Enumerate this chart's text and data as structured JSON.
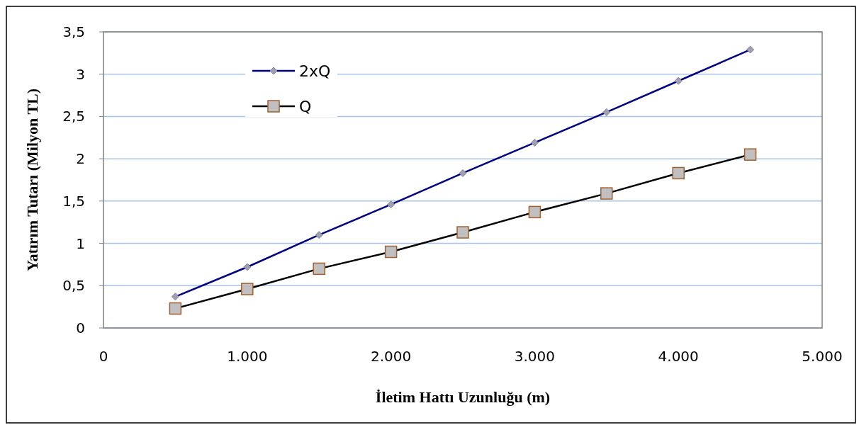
{
  "chart_data": {
    "type": "line",
    "xlabel": "İletim Hattı Uzunluğu (m)",
    "ylabel": "Yatırım Tutarı (Milyon TL)",
    "x": [
      500,
      1000,
      1500,
      2000,
      2500,
      3000,
      3500,
      4000,
      4500
    ],
    "series": [
      {
        "name": "2xQ",
        "color": "#000080",
        "marker": "diamond",
        "values": [
          0.37,
          0.72,
          1.1,
          1.46,
          1.83,
          2.19,
          2.55,
          2.92,
          3.29
        ]
      },
      {
        "name": "Q",
        "color": "#000000",
        "marker": "square",
        "values": [
          0.23,
          0.46,
          0.7,
          0.9,
          1.13,
          1.37,
          1.59,
          1.83,
          2.05
        ]
      }
    ],
    "xlim": [
      0,
      5000
    ],
    "xticks": [
      0,
      {
        "value": 1000,
        "label": "1.000"
      },
      {
        "value": 2000,
        "label": "2.000"
      },
      {
        "value": 3000,
        "label": "3.000"
      },
      {
        "value": 4000,
        "label": "4.000"
      },
      {
        "value": 5000,
        "label": "5.000"
      }
    ],
    "ylim": [
      0,
      3.5
    ],
    "yticks": [
      0,
      {
        "value": 0.5,
        "label": "0,5"
      },
      1,
      {
        "value": 1.5,
        "label": "1,5"
      },
      2,
      {
        "value": 2.5,
        "label": "2,5"
      },
      3,
      {
        "value": 3.5,
        "label": "3,5"
      }
    ],
    "grid": "y",
    "legend": "top left",
    "line_style": "solid"
  }
}
